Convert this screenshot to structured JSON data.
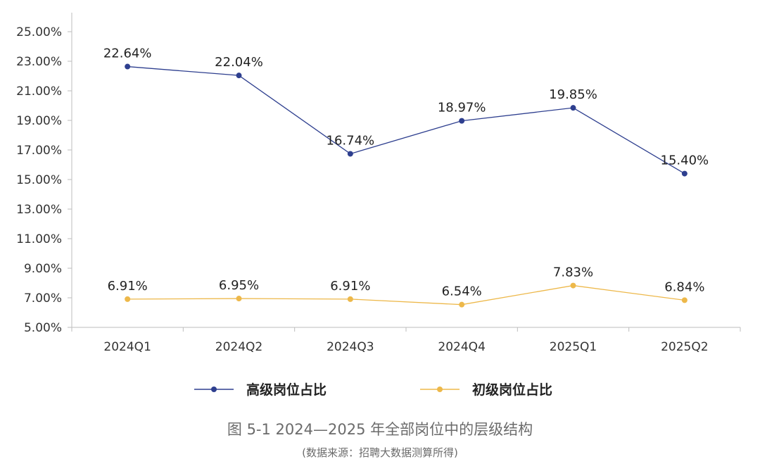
{
  "chart_data": {
    "type": "line",
    "categories": [
      "2024Q1",
      "2024Q2",
      "2024Q3",
      "2024Q4",
      "2025Q1",
      "2025Q2"
    ],
    "series": [
      {
        "name": "高级岗位占比",
        "values": [
          22.64,
          22.04,
          16.74,
          18.97,
          19.85,
          15.4
        ],
        "labels": [
          "22.64%",
          "22.04%",
          "16.74%",
          "18.97%",
          "19.85%",
          "15.40%"
        ],
        "color": "#2E3F8F"
      },
      {
        "name": "初级岗位占比",
        "values": [
          6.91,
          6.95,
          6.91,
          6.54,
          7.83,
          6.84
        ],
        "labels": [
          "6.91%",
          "6.95%",
          "6.91%",
          "6.54%",
          "7.83%",
          "6.84%"
        ],
        "color": "#EDB84A"
      }
    ],
    "ylim": [
      5,
      25
    ],
    "yticks": [
      "5.00%",
      "7.00%",
      "9.00%",
      "11.00%",
      "13.00%",
      "15.00%",
      "17.00%",
      "19.00%",
      "21.00%",
      "23.00%",
      "25.00%"
    ],
    "grid": false,
    "legend": "bottom"
  },
  "figure": {
    "title": "图 5-1 2024—2025 年全部岗位中的层级结构",
    "source": "(数据来源：招聘大数据测算所得)"
  }
}
